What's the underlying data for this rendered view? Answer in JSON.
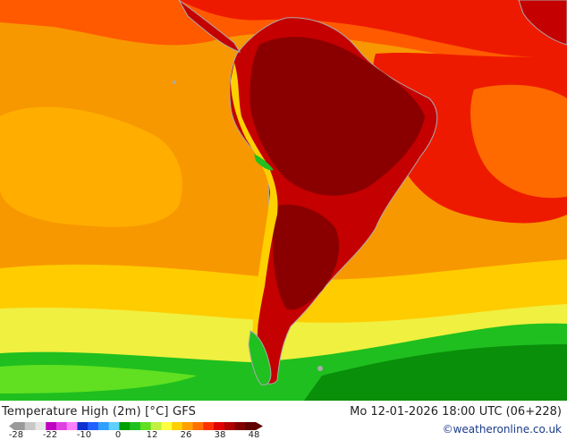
{
  "map": {
    "title": "Temperature High (2m) [°C] GFS",
    "datetime": "Mo 12-01-2026 18:00 UTC (06+228)",
    "credit": "©weatheronline.co.uk"
  },
  "legend": {
    "ticks": [
      "-28",
      "-22",
      "-10",
      "0",
      "12",
      "26",
      "38",
      "48"
    ],
    "colors": [
      "#9a9a9a",
      "#c8c8c8",
      "#e6e6e6",
      "#c000c0",
      "#e040e0",
      "#ff80ff",
      "#1030d0",
      "#2060ff",
      "#30a0ff",
      "#60d0ff",
      "#00a000",
      "#20c020",
      "#60e020",
      "#c0f040",
      "#ffff40",
      "#ffd000",
      "#ffa000",
      "#ff7000",
      "#ff3000",
      "#e00000",
      "#b00000",
      "#800000",
      "#600000"
    ]
  },
  "colors": {
    "ocean_warm": "#f59a00",
    "ocean_hot": "#ff6a00",
    "land_hot": "#c40000",
    "land_very_hot": "#8a0000",
    "cold_green": "#1fbf1f",
    "deep_green": "#0a8f0a"
  }
}
